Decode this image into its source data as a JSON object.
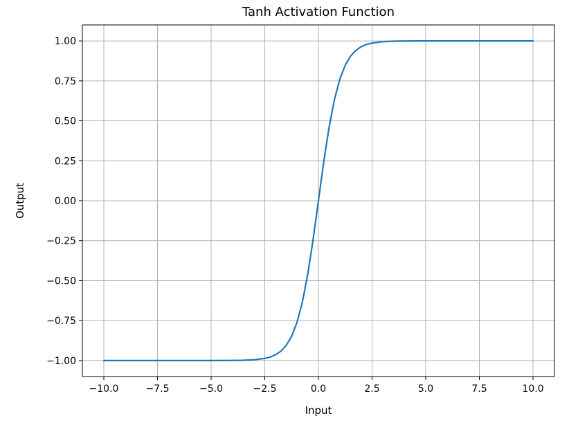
{
  "chart_data": {
    "type": "line",
    "title": "Tanh Activation Function",
    "xlabel": "Input",
    "ylabel": "Output",
    "xlim": [
      -11.0,
      11.0
    ],
    "ylim": [
      -1.1,
      1.1
    ],
    "grid": true,
    "x_ticks": [
      -10.0,
      -7.5,
      -5.0,
      -2.5,
      0.0,
      2.5,
      5.0,
      7.5,
      10.0
    ],
    "x_tick_labels": [
      "−10.0",
      "−7.5",
      "−5.0",
      "−2.5",
      "0.0",
      "2.5",
      "5.0",
      "7.5",
      "10.0"
    ],
    "y_ticks": [
      -1.0,
      -0.75,
      -0.5,
      -0.25,
      0.0,
      0.25,
      0.5,
      0.75,
      1.0
    ],
    "y_tick_labels": [
      "−1.00",
      "−0.75",
      "−0.50",
      "−0.25",
      "0.00",
      "0.25",
      "0.50",
      "0.75",
      "1.00"
    ],
    "series": [
      {
        "color": "#1f77b4",
        "x": [
          -10.0,
          -7.5,
          -5.0,
          -4.0,
          -3.5,
          -3.0,
          -2.5,
          -2.25,
          -2.0,
          -1.75,
          -1.5,
          -1.25,
          -1.0,
          -0.75,
          -0.5,
          -0.25,
          0.0,
          0.25,
          0.5,
          0.75,
          1.0,
          1.25,
          1.5,
          1.75,
          2.0,
          2.25,
          2.5,
          3.0,
          3.5,
          4.0,
          5.0,
          7.5,
          10.0
        ],
        "y": [
          -1.0,
          -1.0,
          -0.9999,
          -0.9993,
          -0.9982,
          -0.9951,
          -0.9866,
          -0.978,
          -0.964,
          -0.9414,
          -0.9051,
          -0.8483,
          -0.7616,
          -0.6351,
          -0.4621,
          -0.2449,
          0.0,
          0.2449,
          0.4621,
          0.6351,
          0.7616,
          0.8483,
          0.9051,
          0.9414,
          0.964,
          0.978,
          0.9866,
          0.9951,
          0.9982,
          0.9993,
          0.9999,
          1.0,
          1.0
        ]
      }
    ]
  }
}
